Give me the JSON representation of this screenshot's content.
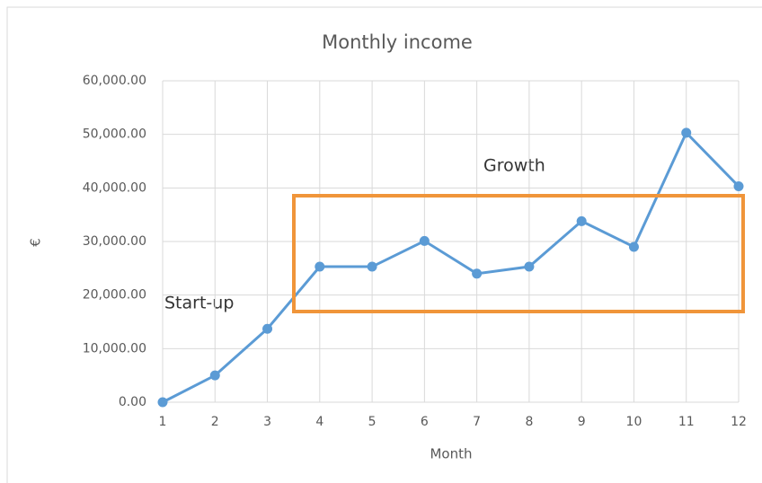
{
  "chart_data": {
    "type": "line",
    "title": "Monthly income",
    "x_label": "Month",
    "y_label": "€",
    "x": [
      1,
      2,
      3,
      4,
      5,
      6,
      7,
      8,
      9,
      10,
      11,
      12
    ],
    "series": [
      {
        "name": "Monthly income",
        "color": "#5b9bd5",
        "values": [
          0,
          5000,
          13700,
          25300,
          25300,
          30100,
          24000,
          25300,
          33800,
          29000,
          50300,
          40300
        ]
      }
    ],
    "xlim": [
      1,
      12
    ],
    "xticks": [
      1,
      2,
      3,
      4,
      5,
      6,
      7,
      8,
      9,
      10,
      11,
      12
    ],
    "ylim": [
      0,
      60000
    ],
    "yticks": [
      {
        "value": 0,
        "label": "0.00"
      },
      {
        "value": 10000,
        "label": "10,000.00"
      },
      {
        "value": 20000,
        "label": "20,000.00"
      },
      {
        "value": 30000,
        "label": "30,000.00"
      },
      {
        "value": 40000,
        "label": "40,000.00"
      },
      {
        "value": 50000,
        "label": "50,000.00"
      },
      {
        "value": 60000,
        "label": "60,000.00"
      }
    ],
    "grid": true,
    "annotations": [
      "Start-up",
      "Growth"
    ]
  }
}
